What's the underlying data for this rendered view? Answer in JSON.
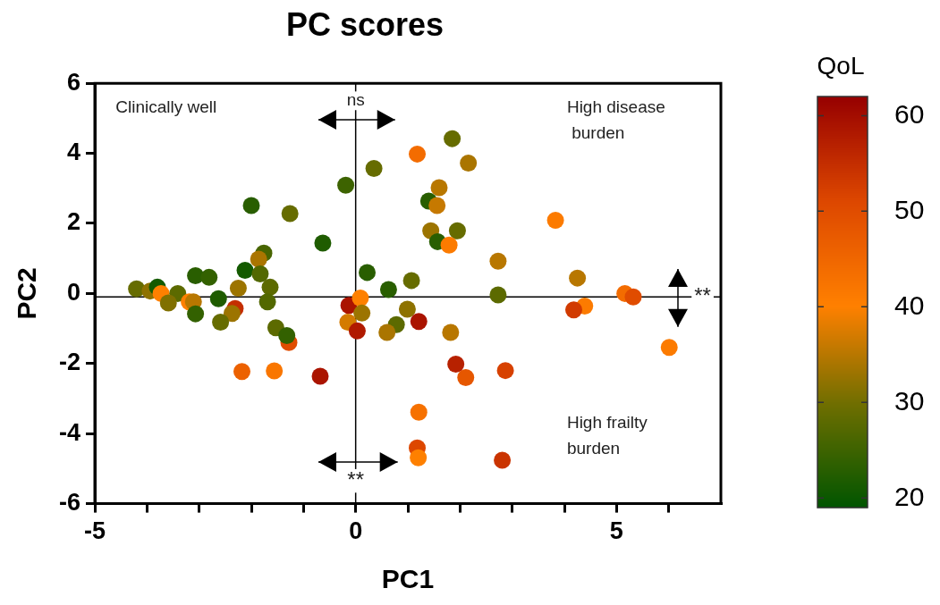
{
  "chart_data": {
    "type": "scatter",
    "title": "PC scores",
    "xlabel": "PC1",
    "ylabel": "PC2",
    "clabel": "QoL",
    "xlim": [
      -5,
      7
    ],
    "xticks": [
      {
        "value": -5,
        "label": "-5"
      },
      {
        "value": -4,
        "label": null
      },
      {
        "value": -3,
        "label": null
      },
      {
        "value": -2,
        "label": null
      },
      {
        "value": -1,
        "label": null
      },
      {
        "value": 0,
        "label": "0"
      },
      {
        "value": 1,
        "label": null
      },
      {
        "value": 2,
        "label": null
      },
      {
        "value": 3,
        "label": null
      },
      {
        "value": 4,
        "label": null
      },
      {
        "value": 5,
        "label": "5"
      },
      {
        "value": 6,
        "label": null
      }
    ],
    "ylim": [
      -6,
      6
    ],
    "yticks": [
      -6,
      -4,
      -2,
      0,
      2,
      4,
      6
    ],
    "clim": [
      19,
      62
    ],
    "cticks": [
      20,
      30,
      40,
      50,
      60
    ],
    "marker": "circle",
    "grid": false,
    "legend": false,
    "ref_lines": [
      {
        "axis": "x",
        "value": 0,
        "color": "#000000"
      },
      {
        "axis": "y",
        "value": -0.1,
        "color": "#000000"
      }
    ],
    "annotations": [
      "Clinically well",
      "High disease\n burden",
      "High frailty\nburden",
      "ns",
      "**",
      "**"
    ],
    "x": [
      0.35,
      -0.19,
      -2.0,
      -1.26,
      -0.63,
      -1.76,
      -1.86,
      -2.12,
      -1.83,
      -3.07,
      -2.81,
      0.22,
      0.63,
      -4.2,
      -3.94,
      -3.8,
      -3.73,
      -3.41,
      -3.59,
      -3.19,
      -3.11,
      -3.07,
      -2.63,
      -2.25,
      -1.64,
      -1.69,
      -2.31,
      -2.37,
      -2.59,
      -1.53,
      -1.28,
      -1.32,
      -2.18,
      -1.56,
      -0.68,
      -0.13,
      0.09,
      0.12,
      -0.15,
      0.03,
      1.85,
      1.18,
      2.16,
      1.6,
      1.4,
      1.56,
      3.83,
      1.44,
      1.95,
      1.57,
      1.79,
      2.73,
      1.07,
      2.73,
      4.25,
      5.16,
      5.32,
      4.39,
      4.18,
      6.01,
      0.99,
      1.21,
      0.78,
      0.6,
      1.82,
      1.92,
      2.11,
      2.87,
      1.21,
      1.18,
      1.2,
      2.81
    ],
    "values": [
      3.57,
      3.09,
      2.51,
      2.28,
      1.44,
      1.15,
      0.98,
      0.66,
      0.56,
      0.51,
      0.46,
      0.6,
      0.11,
      0.13,
      0.07,
      0.18,
      0.0,
      0.0,
      -0.27,
      -0.24,
      -0.24,
      -0.58,
      -0.15,
      0.15,
      0.18,
      -0.24,
      -0.43,
      -0.57,
      -0.82,
      -0.98,
      -1.4,
      -1.2,
      -2.23,
      -2.21,
      -2.36,
      -0.34,
      -0.13,
      -0.56,
      -0.82,
      -1.07,
      4.42,
      3.98,
      3.72,
      3.02,
      2.64,
      2.51,
      2.09,
      1.79,
      1.79,
      1.48,
      1.38,
      0.92,
      0.37,
      -0.04,
      0.44,
      0.0,
      -0.1,
      -0.36,
      -0.47,
      -1.54,
      -0.45,
      -0.8,
      -0.89,
      -1.11,
      -1.11,
      -2.02,
      -2.4,
      -2.2,
      -3.39,
      -4.41,
      -4.69,
      -4.76
    ],
    "cvalues": [
      29,
      25,
      23,
      29,
      22,
      26,
      34,
      21,
      27,
      23,
      24,
      23,
      23,
      29,
      32,
      21,
      40,
      28,
      31,
      40,
      35,
      24,
      22,
      33,
      28,
      27,
      55,
      33,
      29,
      28,
      50,
      24,
      46,
      42,
      59,
      59,
      40,
      33,
      37,
      58,
      29,
      44,
      34,
      35,
      23,
      36,
      41,
      33,
      29,
      23,
      41,
      35,
      29,
      28,
      35,
      44,
      50,
      41,
      53,
      41,
      32,
      59,
      28,
      34,
      35,
      57,
      48,
      52,
      43,
      51,
      40,
      54
    ]
  }
}
